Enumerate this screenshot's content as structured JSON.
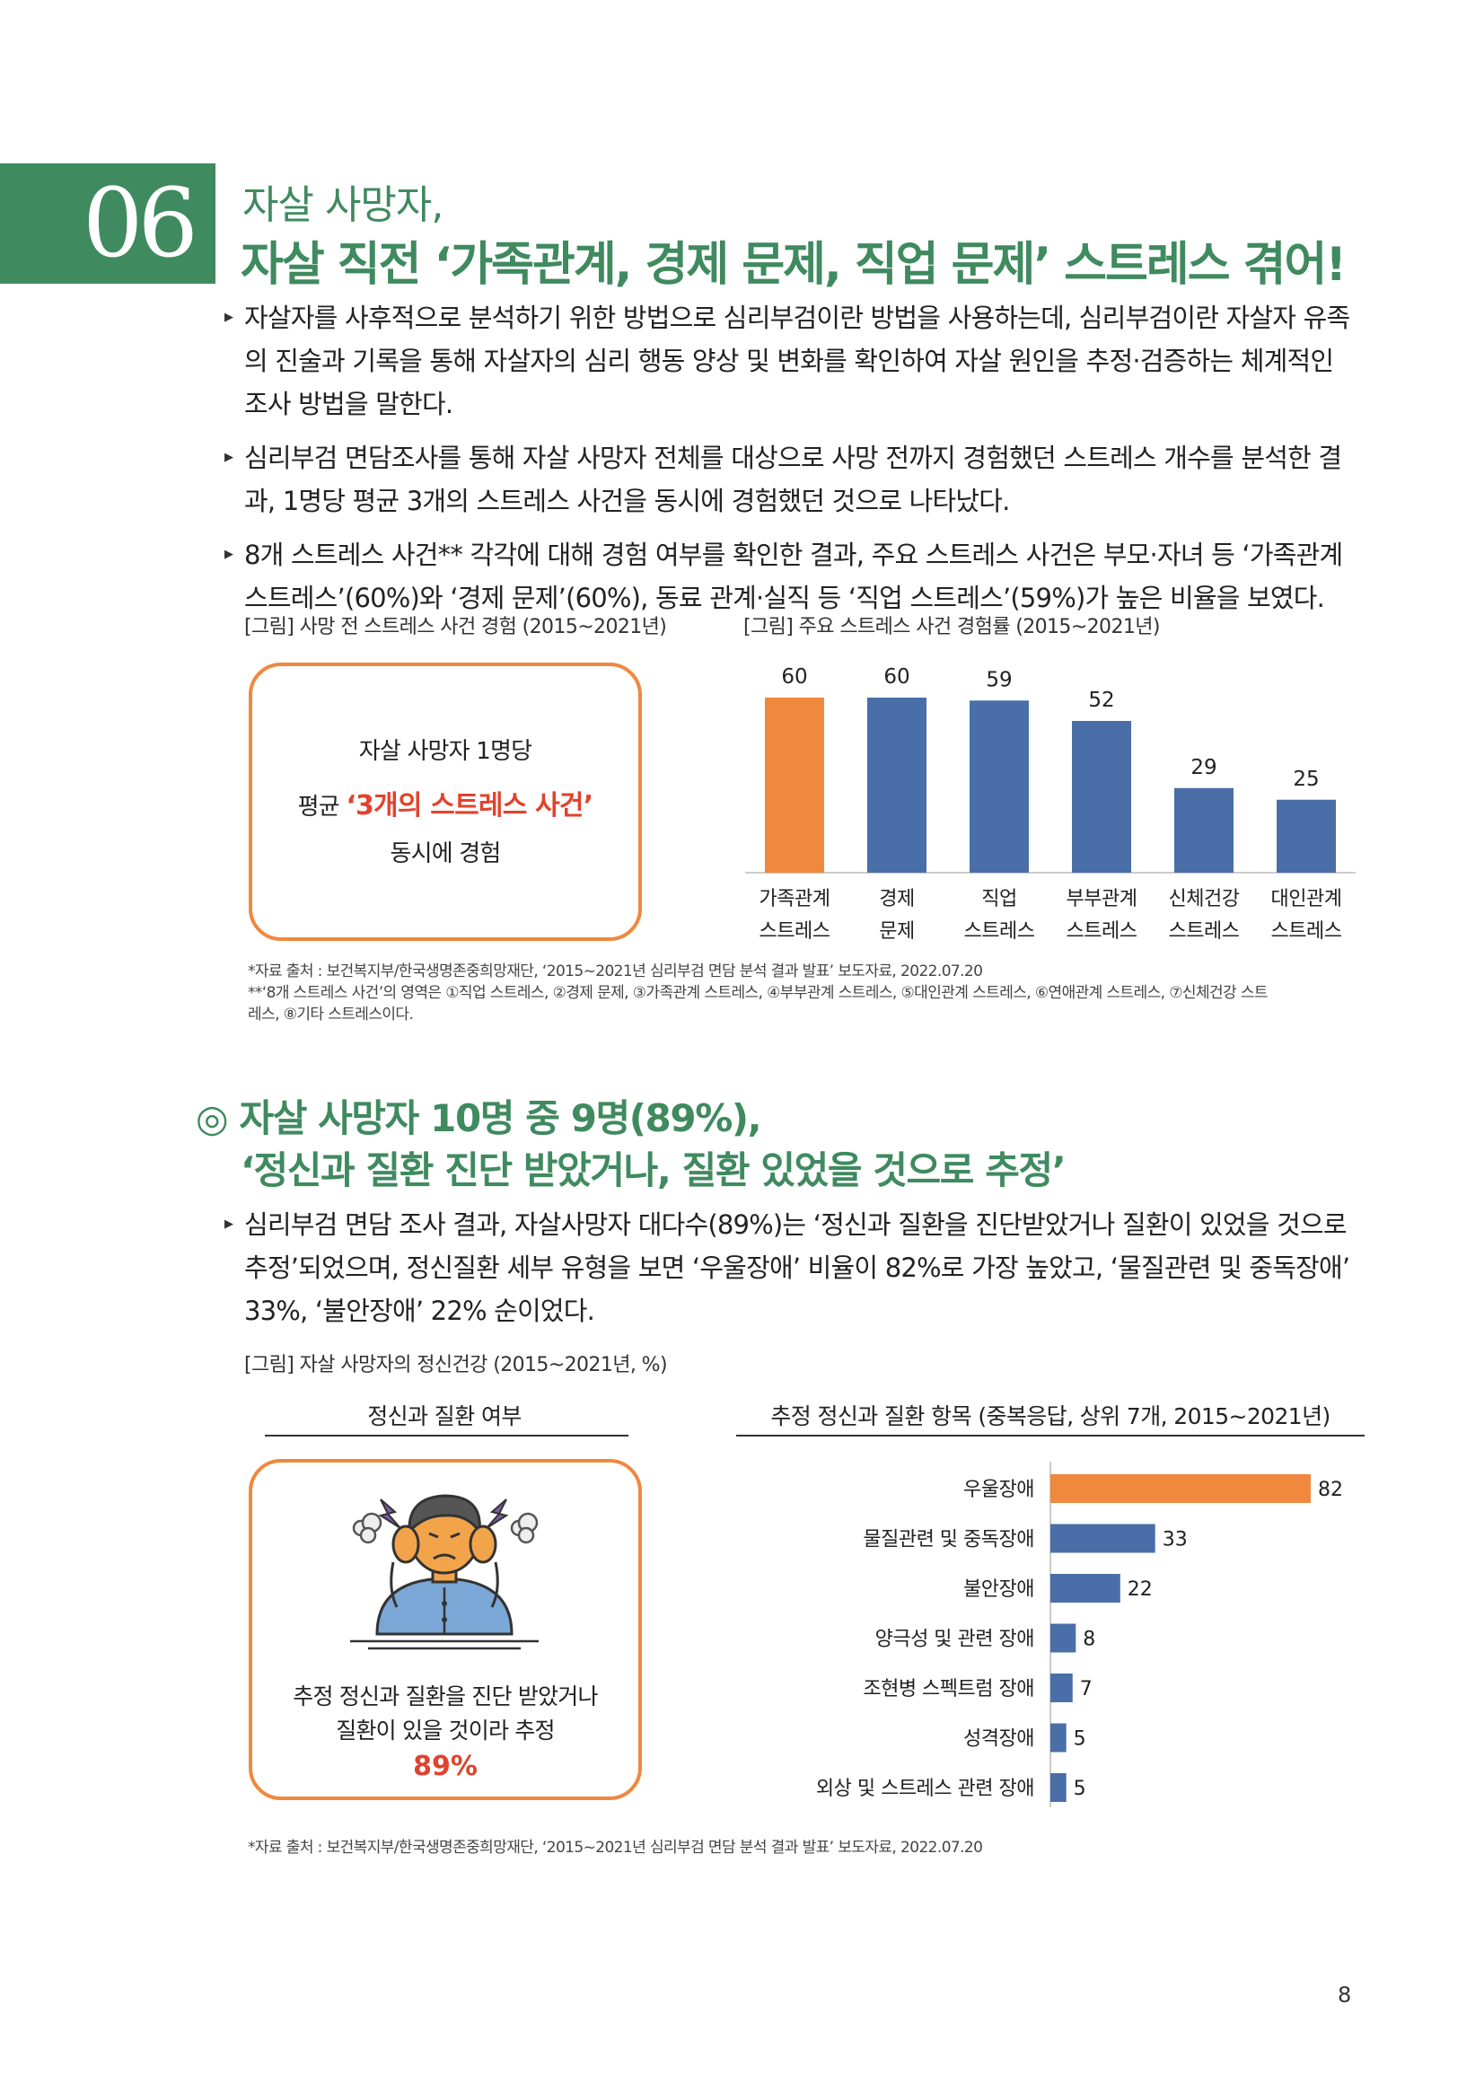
{
  "section": {
    "number": "06",
    "title_line1": "자살 사망자,",
    "title_line2": "자살 직전 ‘가족관계, 경제 문제, 직업 문제’ 스트레스 겪어!"
  },
  "bullets1": [
    "자살자를 사후적으로 분석하기 위한 방법으로 심리부검이란 방법을 사용하는데, 심리부검이란 자살자 유족의 진술과 기록을 통해 자살자의 심리 행동 양상 및 변화를 확인하여 자살 원인을 추정·검증하는 체계적인 조사 방법을 말한다.",
    "심리부검 면담조사를 통해 자살 사망자 전체를 대상으로 사망 전까지 경험했던 스트레스 개수를 분석한 결과, 1명당 평균 3개의 스트레스 사건을 동시에 경험했던 것으로 나타났다.",
    "8개 스트레스 사건** 각각에 대해 경험 여부를 확인한 결과, 주요 스트레스 사건은 부모·자녀 등 ‘가족관계 스트레스’(60%)와 ‘경제 문제’(60%), 동료 관계·실직 등 ‘직업 스트레스’(59%)가 높은 비율을 보였다."
  ],
  "fig1": {
    "caption": "[그림] 사망 전 스트레스 사건 경험 (2015~2021년)",
    "box_line1": "자살 사망자 1명당",
    "box_line2_prefix": "평균 ",
    "box_line2_emph": "‘3개의 스트레스 사건’",
    "box_line3": "동시에 경험"
  },
  "fig2": {
    "caption": "[그림] 주요 스트레스 사건 경험률 (2015~2021년)"
  },
  "notes1": [
    "*자료 출처 : 보건복지부/한국생명존중희망재단, ‘2015~2021년 심리부검 면담 분석 결과 발표’ 보도자료, 2022.07.20",
    "**‘8개 스트레스 사건’의 영역은 ①직업 스트레스, ②경제 문제, ③가족관계 스트레스, ④부부관계 스트레스, ⑤대인관계 스트레스, ⑥연애관계 스트레스, ⑦신체건강 스트",
    "레스, ⑧기타 스트레스이다."
  ],
  "subsection": {
    "symbol": "◎",
    "line1": "자살 사망자 10명 중 9명(89%),",
    "line2": "‘정신과 질환 진단 받았거나, 질환 있었을 것으로 추정’"
  },
  "bullets2": [
    "심리부검 면담 조사 결과, 자살사망자 대다수(89%)는 ‘정신과 질환을 진단받았거나 질환이 있었을 것으로 추정’되었으며, 정신질환 세부 유형을 보면 ‘우울장애’ 비율이 82%로 가장 높았고, ‘물질관련 및 중독장애’ 33%, ‘불안장애’ 22% 순이었다."
  ],
  "fig3": {
    "caption": "[그림] 자살 사망자의 정신건강 (2015~2021년, %)",
    "left_title": "정신과 질환 여부",
    "right_title": "추정 정신과 질환 항목 (중복응답, 상위 7개, 2015~2021년)",
    "box_line1": "추정 정신과 질환을 진단 받았거나",
    "box_line2": "질환이 있을 것이라 추정",
    "box_value": "89%"
  },
  "notes2": "*자료 출처 : 보건복지부/한국생명존중희망재단, ‘2015~2021년 심리부검 면담 분석 결과 발표’ 보도자료, 2022.07.20",
  "page_number": "8",
  "colors": {
    "green": "#3f8a5f",
    "orange": "#f0883e",
    "blue": "#4a6fa8",
    "red": "#e0432e"
  },
  "chart_data": [
    {
      "type": "bar",
      "categories": [
        [
          "가족관계",
          "스트레스"
        ],
        [
          "경제",
          "문제"
        ],
        [
          "직업",
          "스트레스"
        ],
        [
          "부부관계",
          "스트레스"
        ],
        [
          "신체건강",
          "스트레스"
        ],
        [
          "대인관계",
          "스트레스"
        ]
      ],
      "values": [
        60,
        60,
        59,
        52,
        29,
        25
      ],
      "highlight_index": 0,
      "ylim": [
        0,
        60
      ]
    },
    {
      "type": "bar",
      "orientation": "horizontal",
      "categories": [
        "우울장애",
        "물질관련 및 중독장애",
        "불안장애",
        "양극성 및 관련 장애",
        "조현병 스펙트럼 장애",
        "성격장애",
        "외상 및 스트레스 관련 장애"
      ],
      "values": [
        82,
        33,
        22,
        8,
        7,
        5,
        5
      ],
      "highlight_index": 0,
      "xlim": [
        0,
        82
      ]
    }
  ]
}
